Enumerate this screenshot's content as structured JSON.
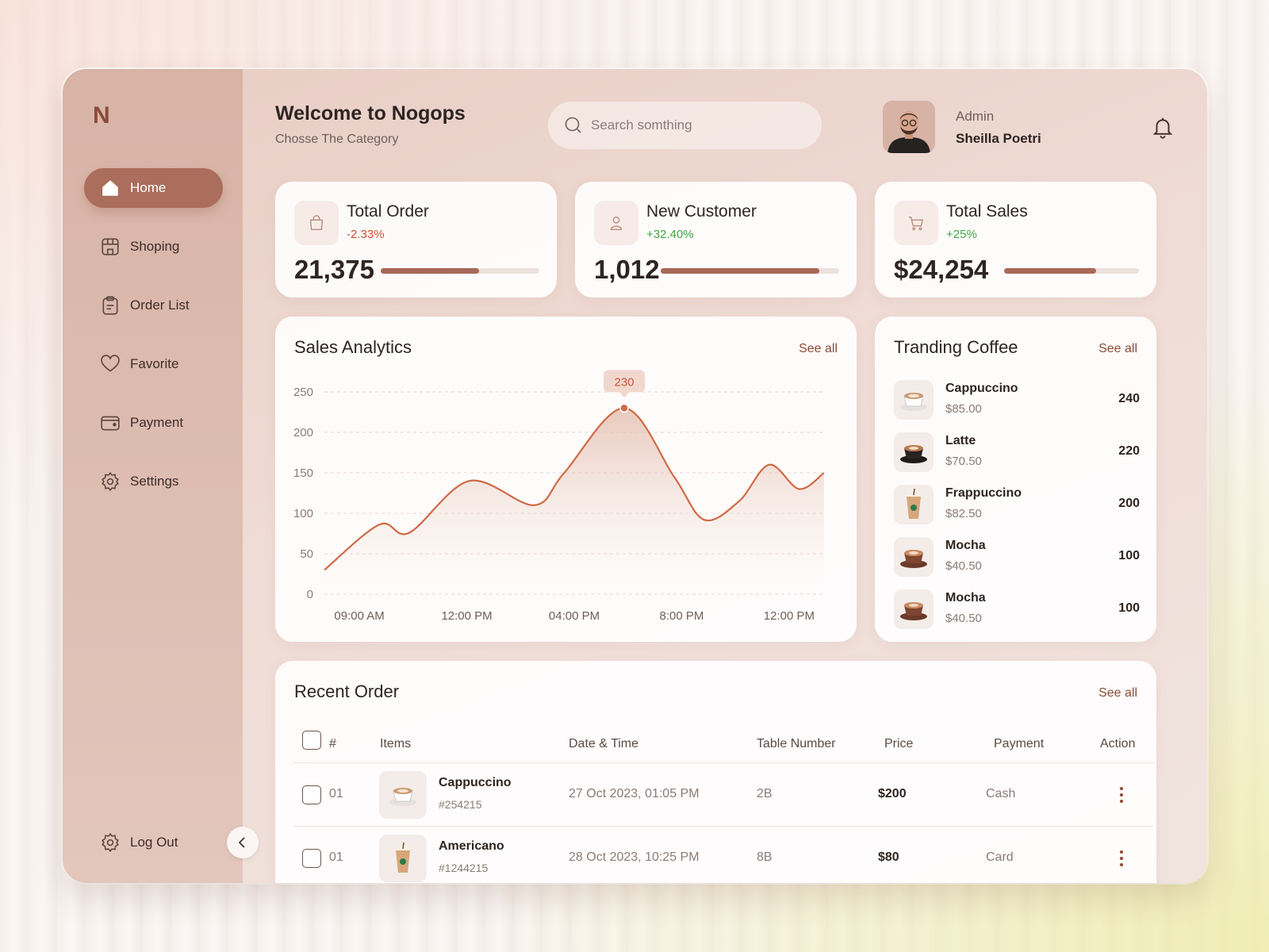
{
  "app": {
    "logo": "N",
    "welcome_title": "Welcome to Nogops",
    "welcome_subtitle": "Chosse The Category"
  },
  "search": {
    "placeholder": "Search somthing"
  },
  "user": {
    "role": "Admin",
    "name": "Sheilla Poetri"
  },
  "sidebar": {
    "items": [
      {
        "label": "Home",
        "icon": "home-icon",
        "active": true
      },
      {
        "label": "Shoping",
        "icon": "store-icon"
      },
      {
        "label": "Order List",
        "icon": "clipboard-icon"
      },
      {
        "label": "Favorite",
        "icon": "heart-icon"
      },
      {
        "label": "Payment",
        "icon": "wallet-icon"
      },
      {
        "label": "Settings",
        "icon": "gear-icon"
      }
    ],
    "logout": "Log Out"
  },
  "stats": [
    {
      "title": "Total Order",
      "change": "-2.33%",
      "value": "21,375",
      "progress": 0.62,
      "icon": "bag-icon"
    },
    {
      "title": "New Customer",
      "change": "+32.40%",
      "value": "1,012",
      "progress": 0.89,
      "icon": "user-icon"
    },
    {
      "title": "Total Sales",
      "change": "+25%",
      "value": "$24,254",
      "progress": 0.68,
      "icon": "cart-icon"
    }
  ],
  "colors": {
    "accent": "#ab6e5c",
    "line": "#cf6a45",
    "negative": "#d0502e",
    "positive": "#3fa73f"
  },
  "analytics": {
    "title": "Sales Analytics",
    "see_all": "See all"
  },
  "chart_data": {
    "type": "line",
    "title": "Sales Analytics",
    "x_tick_labels": [
      "09:00 AM",
      "12:00 PM",
      "04:00 PM",
      "8:00 PM",
      "12:00 PM"
    ],
    "y_ticks": [
      0,
      50,
      100,
      150,
      200,
      250
    ],
    "ylim": [
      0,
      250
    ],
    "grid": true,
    "series": [
      {
        "x": [
          0,
          0.11,
          0.17,
          0.29,
          0.42,
          0.48,
          0.6,
          0.7,
          0.76,
          0.83,
          0.89,
          0.95,
          1.0
        ],
        "values": [
          30,
          86,
          76,
          140,
          110,
          150,
          230,
          145,
          92,
          115,
          160,
          130,
          150
        ]
      }
    ],
    "highlight": {
      "label": "230",
      "value": 230
    }
  },
  "trending": {
    "title": "Tranding Coffee",
    "see_all": "See all",
    "items": [
      {
        "name": "Cappuccino",
        "price": "$85.00",
        "count": "240",
        "icon": "coffee-cup-icon"
      },
      {
        "name": "Latte",
        "price": "$70.50",
        "count": "220",
        "icon": "coffee-cup-icon"
      },
      {
        "name": "Frappuccino",
        "price": "$82.50",
        "count": "200",
        "icon": "iced-drink-icon"
      },
      {
        "name": "Mocha",
        "price": "$40.50",
        "count": "100",
        "icon": "coffee-cup-icon"
      },
      {
        "name": "Mocha",
        "price": "$40.50",
        "count": "100",
        "icon": "coffee-cup-icon"
      }
    ]
  },
  "recent": {
    "title": "Recent Order",
    "see_all": "See all",
    "columns": [
      "#",
      "Items",
      "Date & Time",
      "Table Number",
      "Price",
      "Payment",
      "Action"
    ],
    "rows": [
      {
        "no": "01",
        "item": "Cappuccino",
        "id": "#254215",
        "datetime": "27 Oct 2023, 01:05 PM",
        "table": "2B",
        "price": "$200",
        "payment": "Cash",
        "icon": "coffee-cup-icon"
      },
      {
        "no": "01",
        "item": "Americano",
        "id": "#1244215",
        "datetime": "28 Oct 2023, 10:25 PM",
        "table": "8B",
        "price": "$80",
        "payment": "Card",
        "icon": "iced-drink-icon"
      }
    ]
  }
}
